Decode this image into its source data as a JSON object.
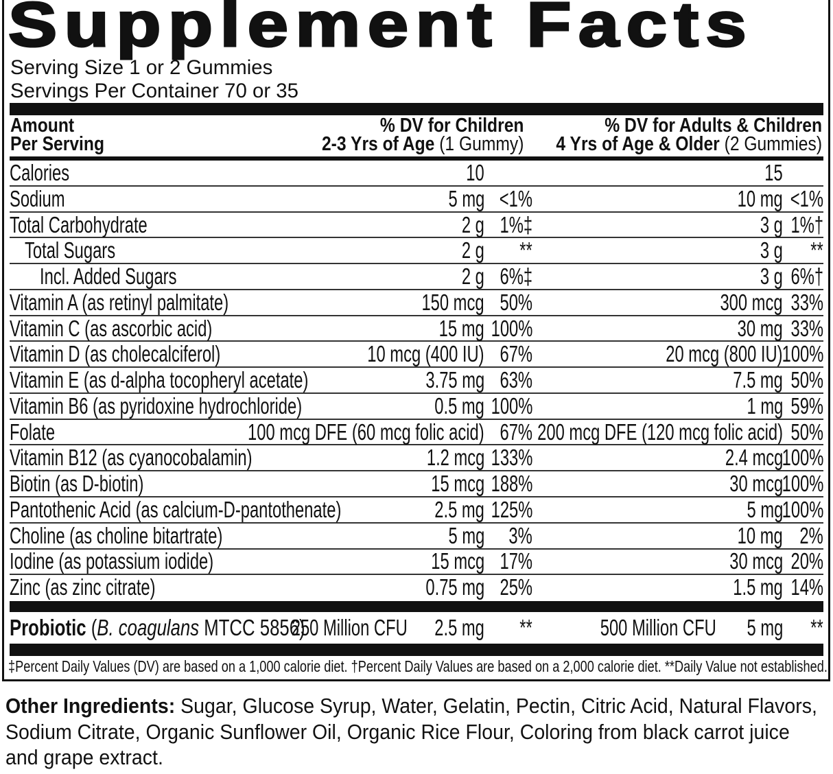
{
  "title": "Supplement Facts",
  "serving_size": "Serving Size 1 or 2 Gummies",
  "servings_per_container": "Servings Per Container 70 or 35",
  "header": {
    "amount_line1": "Amount",
    "amount_line2": "Per Serving",
    "children_line1": "% DV for Children",
    "children_line2_bold": "2-3 Yrs of Age",
    "children_line2_normal": " (1 Gummy)",
    "adults_line1": "% DV for Adults & Children",
    "adults_line2_bold": "4 Yrs of Age & Older",
    "adults_line2_normal": " (2 Gummies)"
  },
  "rows": [
    {
      "label": "Calories",
      "indent": 0,
      "child_amount": "10",
      "child_dv": "",
      "adult_amount": "15",
      "adult_dv": ""
    },
    {
      "label": "Sodium",
      "indent": 0,
      "child_amount": "5 mg",
      "child_dv": "<1%",
      "adult_amount": "10 mg",
      "adult_dv": "<1%"
    },
    {
      "label": "Total Carbohydrate",
      "indent": 0,
      "child_amount": "2 g",
      "child_dv": "1%‡",
      "adult_amount": "3 g",
      "adult_dv": "1%†"
    },
    {
      "label": "Total Sugars",
      "indent": 1,
      "child_amount": "2 g",
      "child_dv": "**",
      "adult_amount": "3 g",
      "adult_dv": "**"
    },
    {
      "label": "Incl. Added Sugars",
      "indent": 2,
      "child_amount": "2 g",
      "child_dv": "6%‡",
      "adult_amount": "3 g",
      "adult_dv": "6%†"
    },
    {
      "label": "Vitamin A (as retinyl palmitate)",
      "indent": 0,
      "child_amount": "150 mcg",
      "child_dv": "50%",
      "adult_amount": "300 mcg",
      "adult_dv": "33%"
    },
    {
      "label": "Vitamin C (as ascorbic acid)",
      "indent": 0,
      "child_amount": "15 mg",
      "child_dv": "100%",
      "adult_amount": "30 mg",
      "adult_dv": "33%"
    },
    {
      "label": "Vitamin D (as cholecalciferol)",
      "indent": 0,
      "child_amount": "10 mcg (400 IU)",
      "child_dv": "67%",
      "adult_amount": "20 mcg (800 IU)",
      "adult_dv": "100%"
    },
    {
      "label": "Vitamin E (as d-alpha tocopheryl acetate)",
      "indent": 0,
      "child_amount": "3.75 mg",
      "child_dv": "63%",
      "adult_amount": "7.5 mg",
      "adult_dv": "50%"
    },
    {
      "label": "Vitamin B6 (as pyridoxine hydrochloride)",
      "indent": 0,
      "child_amount": "0.5 mg",
      "child_dv": "100%",
      "adult_amount": "1 mg",
      "adult_dv": "59%"
    },
    {
      "label": "Folate",
      "indent": 0,
      "child_amount": "100 mcg DFE (60 mcg folic acid)",
      "child_dv": "67%",
      "adult_amount": "200 mcg DFE (120 mcg folic acid)",
      "adult_dv": "50%"
    },
    {
      "label": "Vitamin B12 (as cyanocobalamin)",
      "indent": 0,
      "child_amount": "1.2 mcg",
      "child_dv": "133%",
      "adult_amount": "2.4 mcg",
      "adult_dv": "100%"
    },
    {
      "label": "Biotin (as D-biotin)",
      "indent": 0,
      "child_amount": "15 mcg",
      "child_dv": "188%",
      "adult_amount": "30 mcg",
      "adult_dv": "100%"
    },
    {
      "label": "Pantothenic Acid (as calcium-D-pantothenate)",
      "indent": 0,
      "child_amount": "2.5 mg",
      "child_dv": "125%",
      "adult_amount": "5 mg",
      "adult_dv": "100%"
    },
    {
      "label": "Choline (as choline bitartrate)",
      "indent": 0,
      "child_amount": "5 mg",
      "child_dv": "3%",
      "adult_amount": "10 mg",
      "adult_dv": "2%"
    },
    {
      "label": "Iodine (as potassium iodide)",
      "indent": 0,
      "child_amount": "15 mcg",
      "child_dv": "17%",
      "adult_amount": "30 mcg",
      "adult_dv": "20%"
    },
    {
      "label": "Zinc (as zinc citrate)",
      "indent": 0,
      "child_amount": "0.75 mg",
      "child_dv": "25%",
      "adult_amount": "1.5 mg",
      "adult_dv": "14%"
    }
  ],
  "probiotic": {
    "label": "Probiotic",
    "paren_open": " (",
    "species_italic": "B. coagulans",
    "strain": " MTCC 5856)",
    "child_cfu": "250 Million CFU",
    "child_amount": "2.5 mg",
    "child_dv": "**",
    "adult_cfu": "500 Million CFU",
    "adult_amount": "5 mg",
    "adult_dv": "**"
  },
  "footnote": "‡Percent Daily Values (DV) are based on a 1,000 calorie diet. †Percent Daily Values are based on a 2,000 calorie diet. **Daily Value not established.",
  "other_ingredients": {
    "label": "Other Ingredients:",
    "text": " Sugar, Glucose Syrup, Water, Gelatin, Pectin, Citric Acid, Natural Flavors, Sodium Citrate, Organic Sunflower Oil, Organic Rice Flour, Coloring from black carrot juice and grape extract."
  }
}
